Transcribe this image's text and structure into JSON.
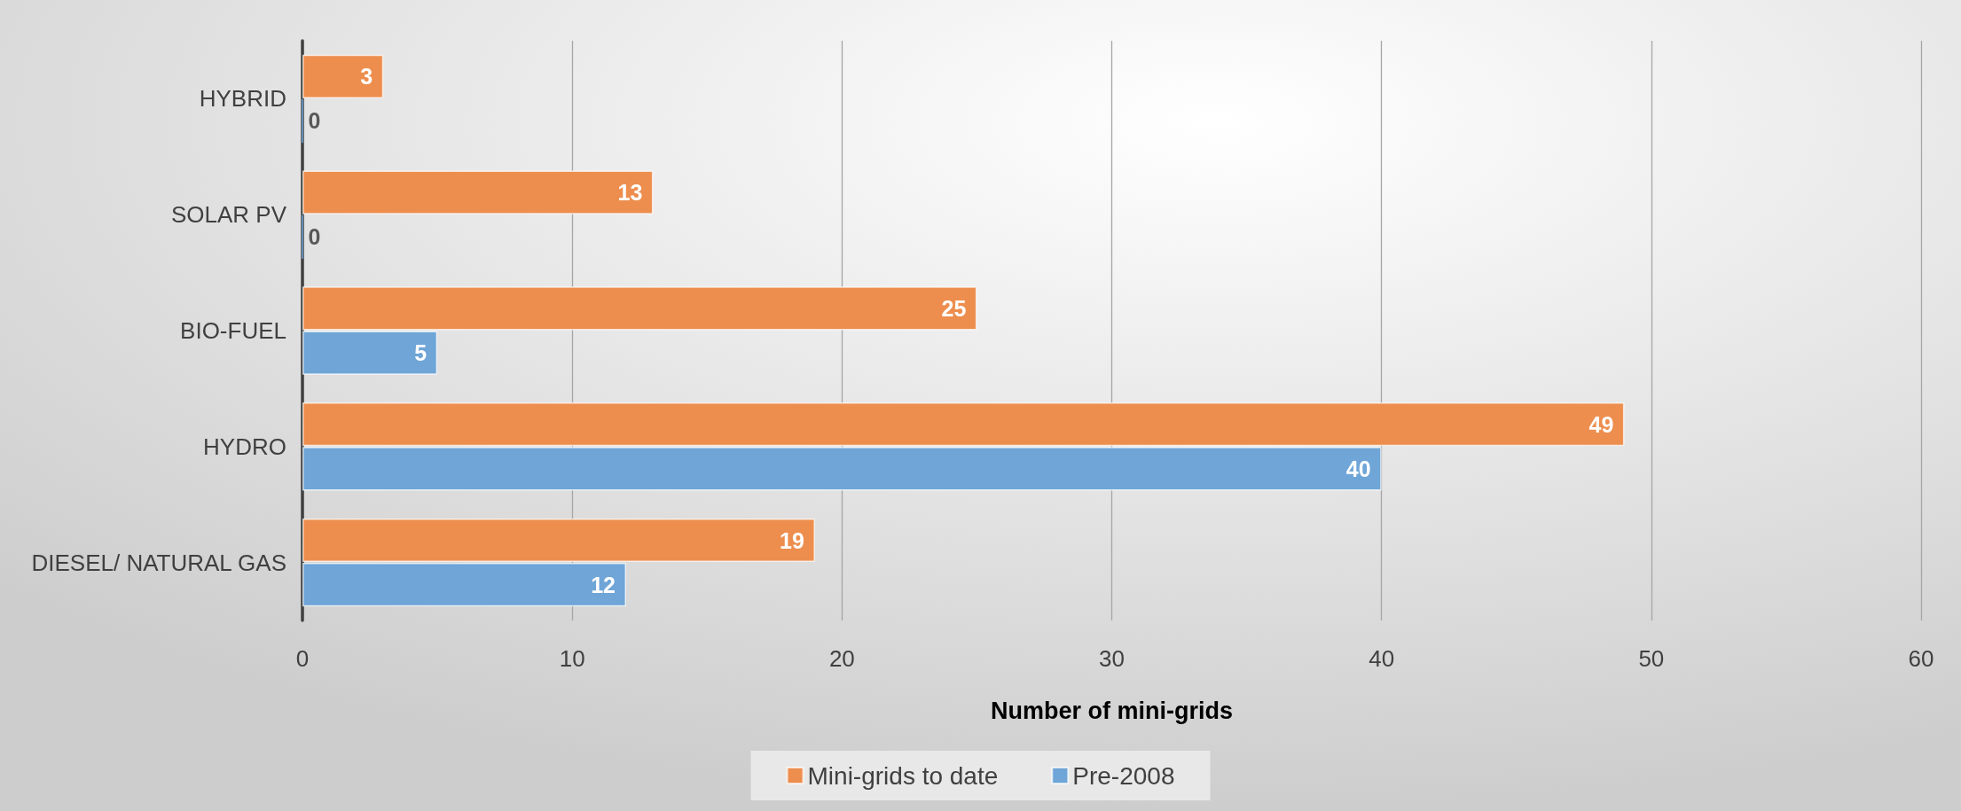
{
  "chart_data": {
    "type": "bar",
    "orientation": "horizontal",
    "categories": [
      "HYBRID",
      "SOLAR PV",
      "BIO-FUEL",
      "HYDRO",
      "DIESEL/ NATURAL GAS"
    ],
    "series": [
      {
        "name": "Mini-grids to date",
        "color": "#ed8e4e",
        "values": [
          3,
          13,
          25,
          49,
          19
        ]
      },
      {
        "name": "Pre-2008",
        "color": "#6fa5d7",
        "values": [
          0,
          0,
          5,
          40,
          12
        ]
      }
    ],
    "xlabel": "Number of mini-grids",
    "xlim": [
      0,
      60
    ],
    "xticks": [
      0,
      10,
      20,
      30,
      40,
      50,
      60
    ],
    "grid": "x",
    "legend": "bottom",
    "data_labels": true
  }
}
